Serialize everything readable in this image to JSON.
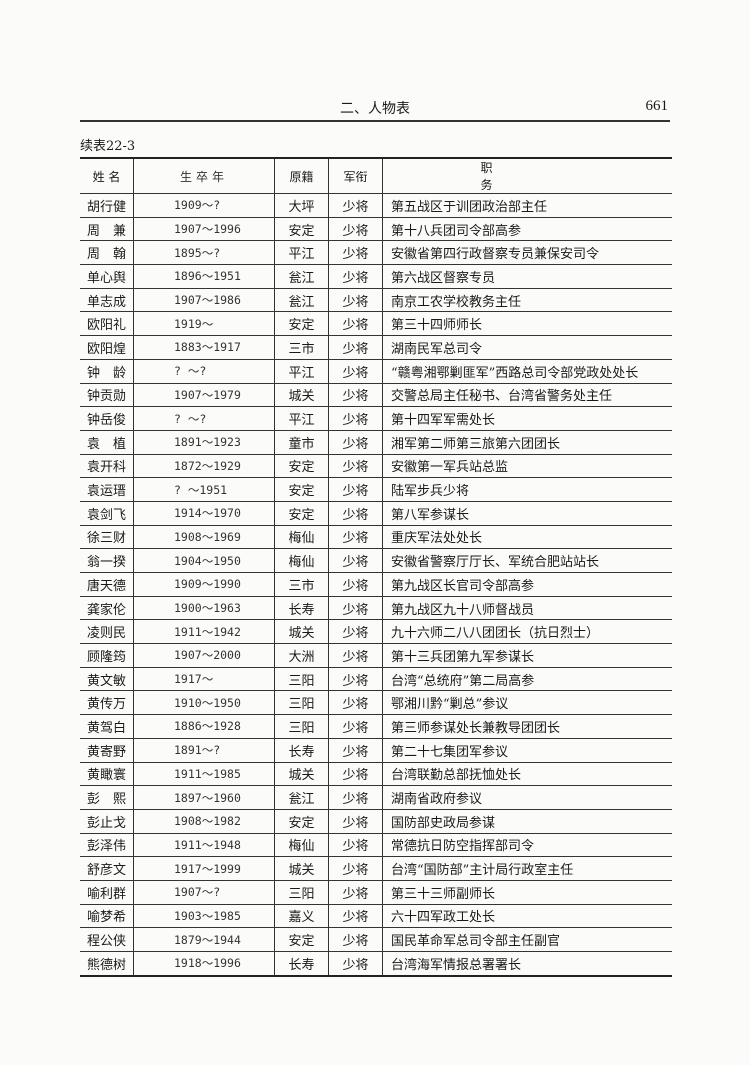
{
  "header": {
    "section": "二、人物表",
    "page_number": "661"
  },
  "caption": "续表22-3",
  "columns": [
    "姓 名",
    "生卒年",
    "原籍",
    "军衔",
    "职 务"
  ],
  "rows": [
    [
      "胡行健",
      "1909～?",
      "大坪",
      "少将",
      "第五战区于训团政治部主任"
    ],
    [
      "周　兼",
      "1907～1996",
      "安定",
      "少将",
      "第十八兵团司令部高参"
    ],
    [
      "周　翰",
      "1895～?",
      "平江",
      "少将",
      "安徽省第四行政督察专员兼保安司令"
    ],
    [
      "单心舆",
      "1896～1951",
      "瓮江",
      "少将",
      "第六战区督察专员"
    ],
    [
      "单志成",
      "1907～1986",
      "瓮江",
      "少将",
      "南京工农学校教务主任"
    ],
    [
      "欧阳礼",
      "1919～",
      "安定",
      "少将",
      "第三十四师师长"
    ],
    [
      "欧阳煌",
      "1883～1917",
      "三市",
      "少将",
      "湖南民军总司令"
    ],
    [
      "钟　龄",
      "? ～?",
      "平江",
      "少将",
      "“赣粤湘鄂剿匪军”西路总司令部党政处处长"
    ],
    [
      "钟贡勋",
      "1907～1979",
      "城关",
      "少将",
      "交警总局主任秘书、台湾省警务处主任"
    ],
    [
      "钟岳俊",
      "? ～?",
      "平江",
      "少将",
      "第十四军军需处长"
    ],
    [
      "袁　植",
      "1891～1923",
      "童市",
      "少将",
      "湘军第二师第三旅第六团团长"
    ],
    [
      "袁开科",
      "1872～1929",
      "安定",
      "少将",
      "安徽第一军兵站总监"
    ],
    [
      "袁运瑨",
      "? ～1951",
      "安定",
      "少将",
      "陆军步兵少将"
    ],
    [
      "袁剑飞",
      "1914～1970",
      "安定",
      "少将",
      "第八军参谋长"
    ],
    [
      "徐三财",
      "1908～1969",
      "梅仙",
      "少将",
      "重庆军法处处长"
    ],
    [
      "翁一揆",
      "1904～1950",
      "梅仙",
      "少将",
      "安徽省警察厅厅长、军统合肥站站长"
    ],
    [
      "唐天德",
      "1909～1990",
      "三市",
      "少将",
      "第九战区长官司令部高参"
    ],
    [
      "龚家伦",
      "1900～1963",
      "长寿",
      "少将",
      "第九战区九十八师督战员"
    ],
    [
      "凌则民",
      "1911～1942",
      "城关",
      "少将",
      "九十六师二八八团团长（抗日烈士）"
    ],
    [
      "顾隆筠",
      "1907～2000",
      "大洲",
      "少将",
      "第十三兵团第九军参谋长"
    ],
    [
      "黄文敏",
      "1917～",
      "三阳",
      "少将",
      "台湾“总统府”第二局高参"
    ],
    [
      "黄传万",
      "1910～1950",
      "三阳",
      "少将",
      "鄂湘川黔“剿总”参议"
    ],
    [
      "黄驾白",
      "1886～1928",
      "三阳",
      "少将",
      "第三师参谋处长兼教导团团长"
    ],
    [
      "黄寄野",
      "1891～?",
      "长寿",
      "少将",
      "第二十七集团军参议"
    ],
    [
      "黄瞰寰",
      "1911～1985",
      "城关",
      "少将",
      "台湾联勤总部抚恤处长"
    ],
    [
      "彭　熙",
      "1897～1960",
      "瓮江",
      "少将",
      "湖南省政府参议"
    ],
    [
      "彭止戈",
      "1908～1982",
      "安定",
      "少将",
      "国防部史政局参谋"
    ],
    [
      "彭泽伟",
      "1911～1948",
      "梅仙",
      "少将",
      "常德抗日防空指挥部司令"
    ],
    [
      "舒彦文",
      "1917～1999",
      "城关",
      "少将",
      "台湾“国防部”主计局行政室主任"
    ],
    [
      "喻利群",
      "1907～?",
      "三阳",
      "少将",
      "第三十三师副师长"
    ],
    [
      "喻梦希",
      "1903～1985",
      "嘉义",
      "少将",
      "六十四军政工处长"
    ],
    [
      "程公侠",
      "1879～1944",
      "安定",
      "少将",
      "国民革命军总司令部主任副官"
    ],
    [
      "熊德树",
      "1918～1996",
      "长寿",
      "少将",
      "台湾海军情报总署署长"
    ]
  ]
}
